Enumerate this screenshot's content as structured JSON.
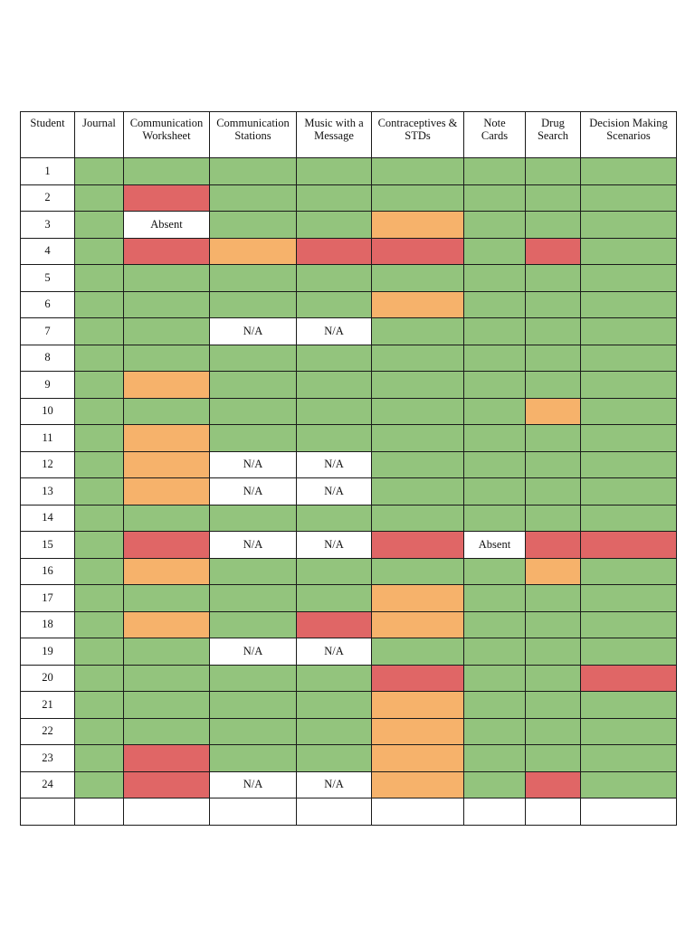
{
  "colors": {
    "G": "#93c47d",
    "R": "#e06666",
    "O": "#f6b26b",
    "W": "#ffffff"
  },
  "columns": [
    {
      "lines": [
        "Student"
      ]
    },
    {
      "lines": [
        "Journal"
      ]
    },
    {
      "lines": [
        "Communication",
        "Worksheet"
      ]
    },
    {
      "lines": [
        "Communication",
        "Stations"
      ]
    },
    {
      "lines": [
        "Music with a",
        "Message"
      ]
    },
    {
      "lines": [
        "Contraceptives &",
        "STDs"
      ]
    },
    {
      "lines": [
        "Note",
        "Cards"
      ]
    },
    {
      "lines": [
        "Drug",
        "Search"
      ]
    },
    {
      "lines": [
        "Decision Making",
        "Scenarios"
      ]
    }
  ],
  "rows": [
    {
      "student": "1",
      "cells": [
        {
          "c": "G"
        },
        {
          "c": "G"
        },
        {
          "c": "G"
        },
        {
          "c": "G"
        },
        {
          "c": "G"
        },
        {
          "c": "G"
        },
        {
          "c": "G"
        },
        {
          "c": "G"
        }
      ]
    },
    {
      "student": "2",
      "cells": [
        {
          "c": "G"
        },
        {
          "c": "R"
        },
        {
          "c": "G"
        },
        {
          "c": "G"
        },
        {
          "c": "G"
        },
        {
          "c": "G"
        },
        {
          "c": "G"
        },
        {
          "c": "G"
        }
      ]
    },
    {
      "student": "3",
      "cells": [
        {
          "c": "G"
        },
        {
          "c": "W",
          "t": "Absent"
        },
        {
          "c": "G"
        },
        {
          "c": "G"
        },
        {
          "c": "O"
        },
        {
          "c": "G"
        },
        {
          "c": "G"
        },
        {
          "c": "G"
        }
      ]
    },
    {
      "student": "4",
      "cells": [
        {
          "c": "G"
        },
        {
          "c": "R"
        },
        {
          "c": "O"
        },
        {
          "c": "R"
        },
        {
          "c": "R"
        },
        {
          "c": "G"
        },
        {
          "c": "R"
        },
        {
          "c": "G"
        }
      ]
    },
    {
      "student": "5",
      "cells": [
        {
          "c": "G"
        },
        {
          "c": "G"
        },
        {
          "c": "G"
        },
        {
          "c": "G"
        },
        {
          "c": "G"
        },
        {
          "c": "G"
        },
        {
          "c": "G"
        },
        {
          "c": "G"
        }
      ]
    },
    {
      "student": "6",
      "cells": [
        {
          "c": "G"
        },
        {
          "c": "G"
        },
        {
          "c": "G"
        },
        {
          "c": "G"
        },
        {
          "c": "O"
        },
        {
          "c": "G"
        },
        {
          "c": "G"
        },
        {
          "c": "G"
        }
      ]
    },
    {
      "student": "7",
      "cells": [
        {
          "c": "G"
        },
        {
          "c": "G"
        },
        {
          "c": "W",
          "t": "N/A"
        },
        {
          "c": "W",
          "t": "N/A"
        },
        {
          "c": "G"
        },
        {
          "c": "G"
        },
        {
          "c": "G"
        },
        {
          "c": "G"
        }
      ]
    },
    {
      "student": "8",
      "cells": [
        {
          "c": "G"
        },
        {
          "c": "G"
        },
        {
          "c": "G"
        },
        {
          "c": "G"
        },
        {
          "c": "G"
        },
        {
          "c": "G"
        },
        {
          "c": "G"
        },
        {
          "c": "G"
        }
      ]
    },
    {
      "student": "9",
      "cells": [
        {
          "c": "G"
        },
        {
          "c": "O"
        },
        {
          "c": "G"
        },
        {
          "c": "G"
        },
        {
          "c": "G"
        },
        {
          "c": "G"
        },
        {
          "c": "G"
        },
        {
          "c": "G"
        }
      ]
    },
    {
      "student": "10",
      "cells": [
        {
          "c": "G"
        },
        {
          "c": "G"
        },
        {
          "c": "G"
        },
        {
          "c": "G"
        },
        {
          "c": "G"
        },
        {
          "c": "G"
        },
        {
          "c": "O"
        },
        {
          "c": "G"
        }
      ]
    },
    {
      "student": "11",
      "cells": [
        {
          "c": "G"
        },
        {
          "c": "O"
        },
        {
          "c": "G"
        },
        {
          "c": "G"
        },
        {
          "c": "G"
        },
        {
          "c": "G"
        },
        {
          "c": "G"
        },
        {
          "c": "G"
        }
      ]
    },
    {
      "student": "12",
      "cells": [
        {
          "c": "G"
        },
        {
          "c": "O"
        },
        {
          "c": "W",
          "t": "N/A"
        },
        {
          "c": "W",
          "t": "N/A"
        },
        {
          "c": "G"
        },
        {
          "c": "G"
        },
        {
          "c": "G"
        },
        {
          "c": "G"
        }
      ]
    },
    {
      "student": "13",
      "cells": [
        {
          "c": "G"
        },
        {
          "c": "O"
        },
        {
          "c": "W",
          "t": "N/A"
        },
        {
          "c": "W",
          "t": "N/A"
        },
        {
          "c": "G"
        },
        {
          "c": "G"
        },
        {
          "c": "G"
        },
        {
          "c": "G"
        }
      ]
    },
    {
      "student": "14",
      "cells": [
        {
          "c": "G"
        },
        {
          "c": "G"
        },
        {
          "c": "G"
        },
        {
          "c": "G"
        },
        {
          "c": "G"
        },
        {
          "c": "G"
        },
        {
          "c": "G"
        },
        {
          "c": "G"
        }
      ]
    },
    {
      "student": "15",
      "cells": [
        {
          "c": "G"
        },
        {
          "c": "R"
        },
        {
          "c": "W",
          "t": "N/A"
        },
        {
          "c": "W",
          "t": "N/A"
        },
        {
          "c": "R"
        },
        {
          "c": "W",
          "t": "Absent"
        },
        {
          "c": "R"
        },
        {
          "c": "R"
        }
      ]
    },
    {
      "student": "16",
      "cells": [
        {
          "c": "G"
        },
        {
          "c": "O"
        },
        {
          "c": "G"
        },
        {
          "c": "G"
        },
        {
          "c": "G"
        },
        {
          "c": "G"
        },
        {
          "c": "O"
        },
        {
          "c": "G"
        }
      ]
    },
    {
      "student": "17",
      "cells": [
        {
          "c": "G"
        },
        {
          "c": "G"
        },
        {
          "c": "G"
        },
        {
          "c": "G"
        },
        {
          "c": "O"
        },
        {
          "c": "G"
        },
        {
          "c": "G"
        },
        {
          "c": "G"
        }
      ]
    },
    {
      "student": "18",
      "cells": [
        {
          "c": "G"
        },
        {
          "c": "O"
        },
        {
          "c": "G"
        },
        {
          "c": "R"
        },
        {
          "c": "O"
        },
        {
          "c": "G"
        },
        {
          "c": "G"
        },
        {
          "c": "G"
        }
      ]
    },
    {
      "student": "19",
      "cells": [
        {
          "c": "G"
        },
        {
          "c": "G"
        },
        {
          "c": "W",
          "t": "N/A"
        },
        {
          "c": "W",
          "t": "N/A"
        },
        {
          "c": "G"
        },
        {
          "c": "G"
        },
        {
          "c": "G"
        },
        {
          "c": "G"
        }
      ]
    },
    {
      "student": "20",
      "cells": [
        {
          "c": "G"
        },
        {
          "c": "G"
        },
        {
          "c": "G"
        },
        {
          "c": "G"
        },
        {
          "c": "R"
        },
        {
          "c": "G"
        },
        {
          "c": "G"
        },
        {
          "c": "R"
        }
      ]
    },
    {
      "student": "21",
      "cells": [
        {
          "c": "G"
        },
        {
          "c": "G"
        },
        {
          "c": "G"
        },
        {
          "c": "G"
        },
        {
          "c": "O"
        },
        {
          "c": "G"
        },
        {
          "c": "G"
        },
        {
          "c": "G"
        }
      ]
    },
    {
      "student": "22",
      "cells": [
        {
          "c": "G"
        },
        {
          "c": "G"
        },
        {
          "c": "G"
        },
        {
          "c": "G"
        },
        {
          "c": "O"
        },
        {
          "c": "G"
        },
        {
          "c": "G"
        },
        {
          "c": "G"
        }
      ]
    },
    {
      "student": "23",
      "cells": [
        {
          "c": "G"
        },
        {
          "c": "R"
        },
        {
          "c": "G"
        },
        {
          "c": "G"
        },
        {
          "c": "O"
        },
        {
          "c": "G"
        },
        {
          "c": "G"
        },
        {
          "c": "G"
        }
      ]
    },
    {
      "student": "24",
      "cells": [
        {
          "c": "G"
        },
        {
          "c": "R"
        },
        {
          "c": "W",
          "t": "N/A"
        },
        {
          "c": "W",
          "t": "N/A"
        },
        {
          "c": "O"
        },
        {
          "c": "G"
        },
        {
          "c": "R"
        },
        {
          "c": "G"
        }
      ]
    },
    {
      "student": "",
      "cells": [
        {
          "c": "W"
        },
        {
          "c": "W"
        },
        {
          "c": "W"
        },
        {
          "c": "W"
        },
        {
          "c": "W"
        },
        {
          "c": "W"
        },
        {
          "c": "W"
        },
        {
          "c": "W"
        }
      ]
    }
  ]
}
